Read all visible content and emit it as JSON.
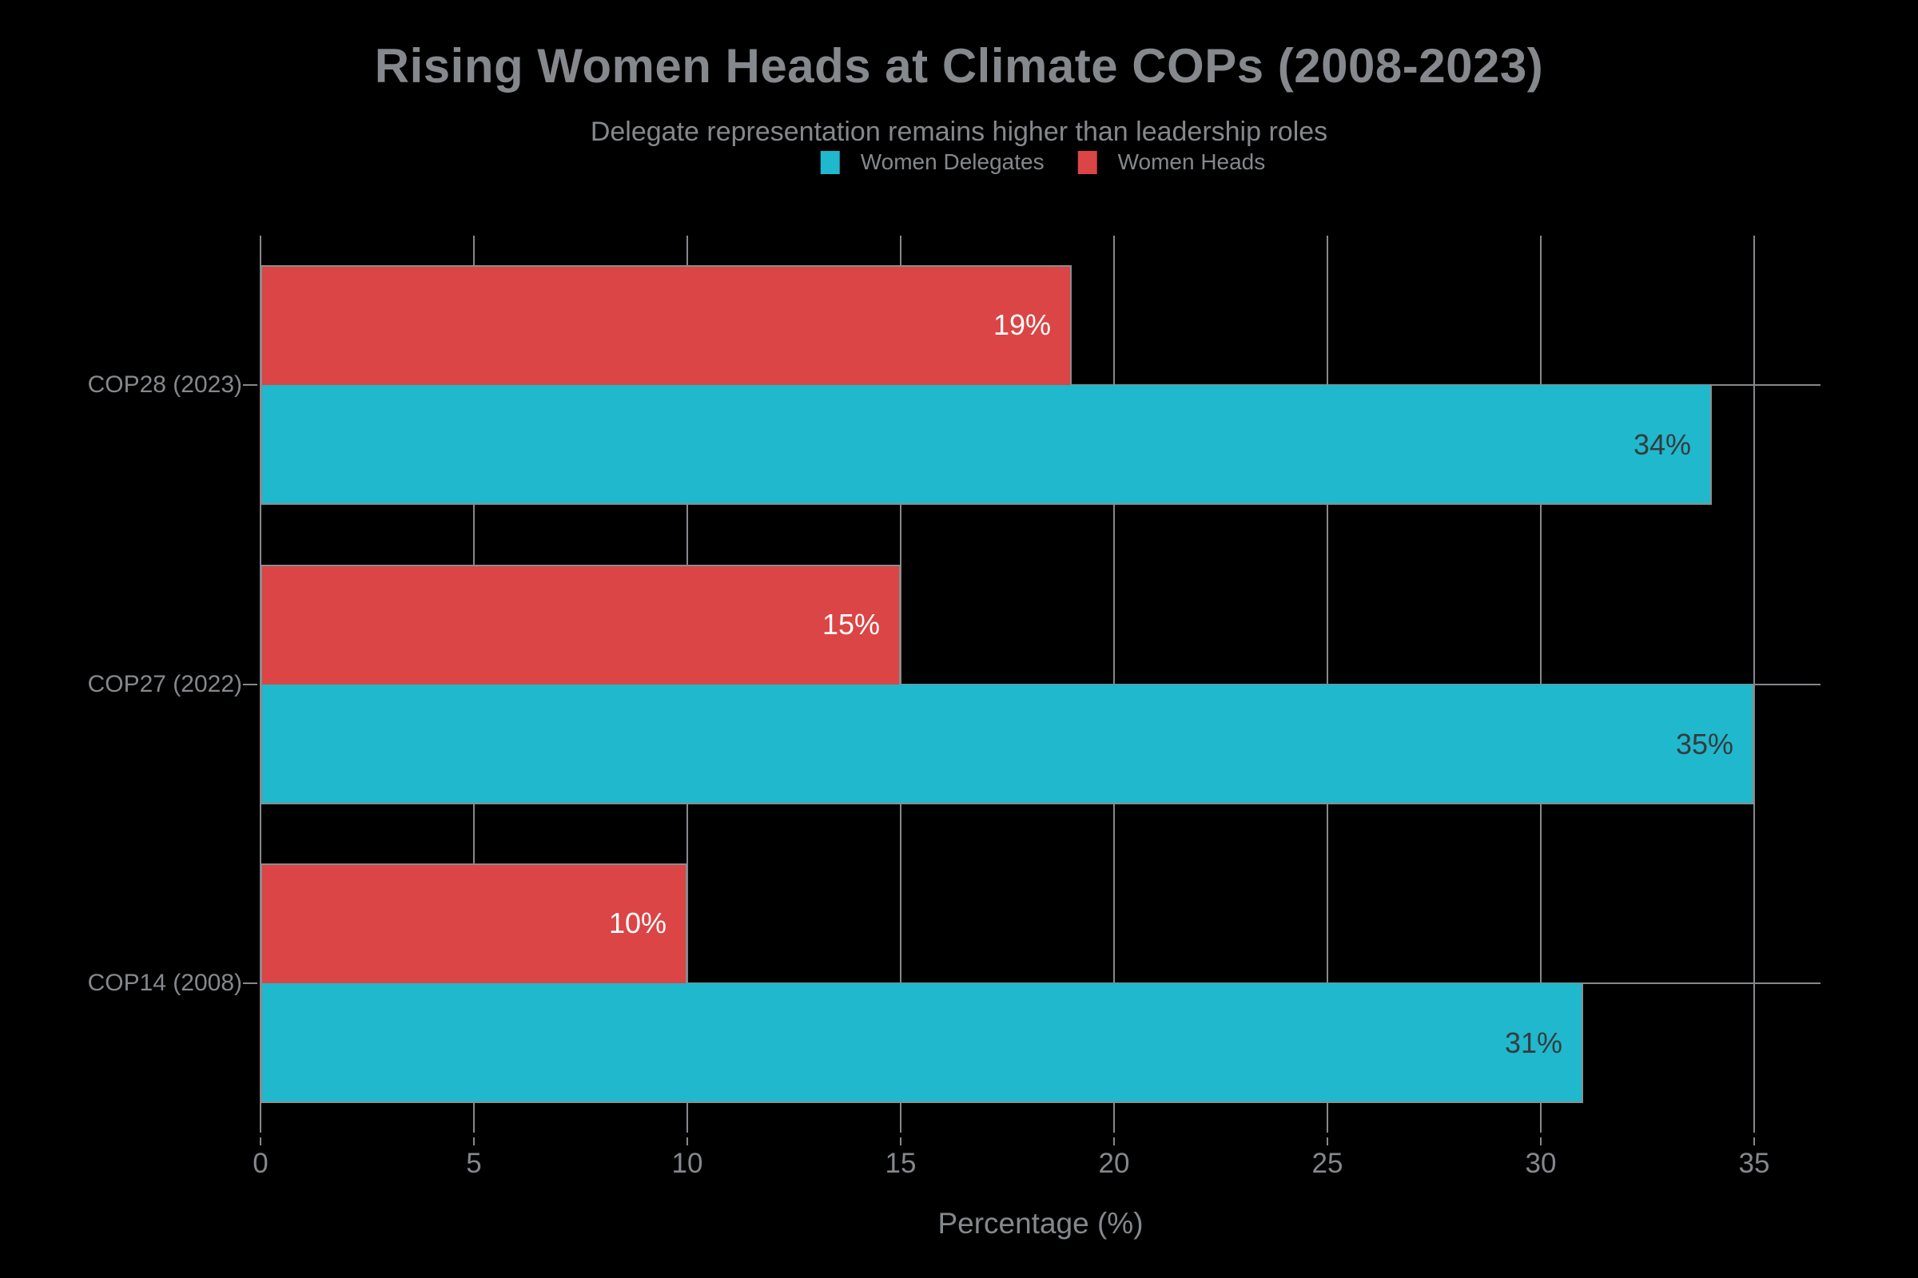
{
  "page": {
    "background": "#000000"
  },
  "chart_data": {
    "type": "bar",
    "orientation": "horizontal",
    "title": "Rising Women Heads at Climate COPs (2008-2023)",
    "subtitle": "Delegate representation remains higher than leadership roles",
    "xlabel": "Percentage (%)",
    "categories": [
      "COP28 (2023)",
      "COP27 (2022)",
      "COP14 (2008)"
    ],
    "series": [
      {
        "name": "Women Heads",
        "color": "#DB4545",
        "label_color": "#FFFFFF",
        "values": [
          19,
          15,
          10
        ],
        "labels": [
          "19%",
          "15%",
          "10%"
        ]
      },
      {
        "name": "Women Delegates",
        "color": "#1FB8CD",
        "label_color": "#363B3E",
        "values": [
          34,
          35,
          31
        ],
        "labels": [
          "34%",
          "35%",
          "31%"
        ]
      }
    ],
    "legend": [
      {
        "label": "Women Delegates",
        "color": "#1FB8CD"
      },
      {
        "label": "Women Heads",
        "color": "#DB4545"
      }
    ],
    "x_ticks": [
      0,
      5,
      10,
      15,
      20,
      25,
      30,
      35
    ],
    "xlim": [
      0,
      36.6
    ],
    "grid": true,
    "legend_position": "top-center",
    "colors": {
      "background": "#000000",
      "text": "#85888C",
      "grid": "#85888C",
      "bar_stroke": "#8A8D8F"
    }
  }
}
